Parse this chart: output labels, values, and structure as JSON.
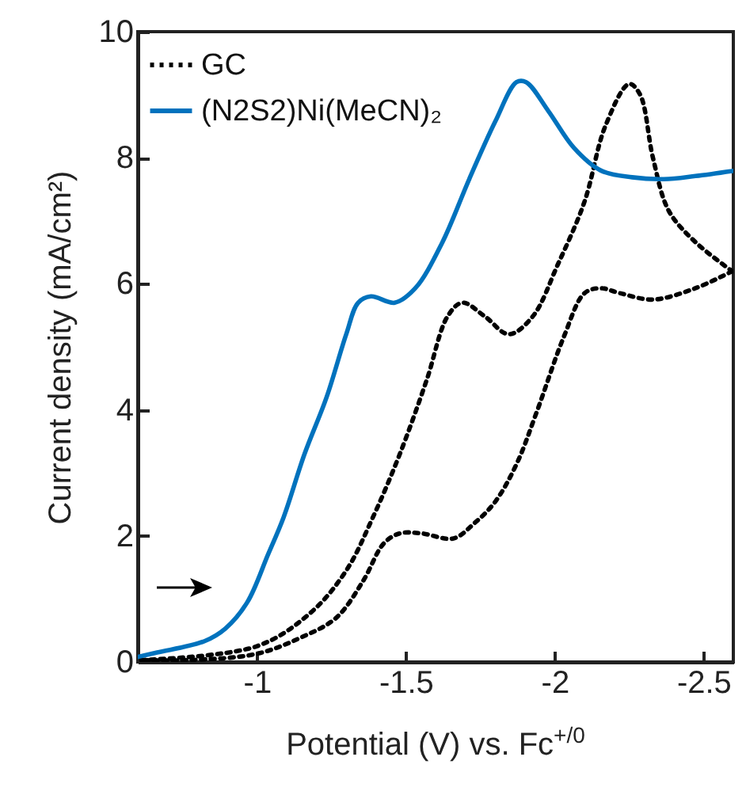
{
  "chart_data": {
    "type": "line",
    "xlabel": "Potential (V) vs. Fc$^{+/0}$",
    "ylabel": "Current density (mA/cm²)",
    "xlim": [
      -0.6,
      -2.6
    ],
    "xticks": [
      -1,
      -1.5,
      -2,
      -2.5
    ],
    "ylim": [
      0,
      10
    ],
    "yticks": [
      0,
      2,
      4,
      6,
      8,
      10
    ],
    "legend": "top left",
    "grid": false,
    "series": [
      {
        "name": "GC",
        "color": "#000000",
        "line_style": "dotted",
        "x": [
          -0.612,
          -1.0,
          -1.18,
          -1.3,
          -1.39,
          -1.48,
          -1.57,
          -1.64,
          -1.69,
          -1.766,
          -1.846,
          -1.926,
          -2.01,
          -2.1,
          -2.17,
          -2.25,
          -2.287,
          -2.33,
          -2.383,
          -2.473,
          -2.596
        ],
        "values": [
          0.03,
          0.25,
          0.78,
          1.45,
          2.3,
          3.3,
          4.47,
          5.48,
          5.7,
          5.48,
          5.2,
          5.48,
          6.3,
          7.3,
          8.5,
          9.17,
          9.0,
          8.0,
          7.16,
          6.66,
          6.2
        ]
      },
      {
        "color": "#000000",
        "line_style": "dotted",
        "x": [
          -2.596,
          -2.473,
          -2.33,
          -2.22,
          -2.154,
          -2.1,
          -2.03,
          -1.94,
          -1.872,
          -1.8,
          -1.73,
          -1.66,
          -1.553,
          -1.48,
          -1.426,
          -1.356,
          -1.266,
          -1.144,
          -1.0,
          -0.771,
          -0.612
        ],
        "values": [
          6.2,
          5.93,
          5.75,
          5.85,
          5.93,
          5.85,
          5.15,
          3.97,
          3.14,
          2.54,
          2.2,
          1.96,
          2.04,
          2.04,
          1.88,
          1.28,
          0.7,
          0.38,
          0.13,
          0.03,
          0.03
        ]
      },
      {
        "name": "(N2S2)Ni(MeCN)₂",
        "color": "#0072bd",
        "line_style": "solid",
        "x": [
          -0.6,
          -0.665,
          -0.824,
          -0.894,
          -0.968,
          -1.037,
          -1.09,
          -1.16,
          -1.234,
          -1.3,
          -1.34,
          -1.383,
          -1.463,
          -1.532,
          -1.622,
          -1.713,
          -1.8,
          -1.872,
          -1.904,
          -1.979,
          -2.064,
          -2.154,
          -2.26,
          -2.367,
          -2.473,
          -2.596
        ],
        "values": [
          0.08,
          0.15,
          0.33,
          0.53,
          0.95,
          1.7,
          2.3,
          3.3,
          4.2,
          5.2,
          5.7,
          5.8,
          5.7,
          5.93,
          6.65,
          7.66,
          8.57,
          9.2,
          9.2,
          8.74,
          8.16,
          7.8,
          7.69,
          7.66,
          7.71,
          7.79
        ]
      }
    ]
  }
}
